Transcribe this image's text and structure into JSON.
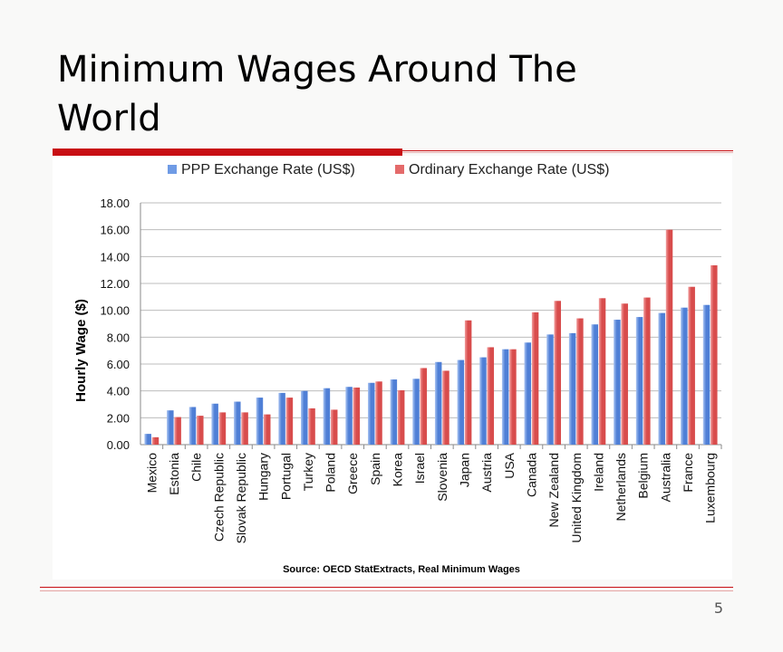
{
  "slide": {
    "title": "Minimum Wages Around The World",
    "page_number": "5"
  },
  "colors": {
    "ppp": "#6f9be5",
    "ordinary": "#e46a6a",
    "accent": "#c80f14"
  },
  "chart_data": {
    "type": "bar",
    "title": "",
    "xlabel": "",
    "ylabel": "Hourly Wage ($)",
    "ylim": [
      0,
      18
    ],
    "yticks": [
      "0.00",
      "2.00",
      "4.00",
      "6.00",
      "8.00",
      "10.00",
      "12.00",
      "14.00",
      "16.00",
      "18.00"
    ],
    "grid": true,
    "legend_position": "top",
    "source": "Source: OECD StatExtracts, Real Minimum Wages",
    "categories": [
      "Mexico",
      "Estonia",
      "Chile",
      "Czech Republic",
      "Slovak Republic",
      "Hungary",
      "Portugal",
      "Turkey",
      "Poland",
      "Greece",
      "Spain",
      "Korea",
      "Israel",
      "Slovenia",
      "Japan",
      "Austria",
      "USA",
      "Canada",
      "New Zealand",
      "United Kingdom",
      "Ireland",
      "Netherlands",
      "Belgium",
      "Australia",
      "France",
      "Luxembourg"
    ],
    "series": [
      {
        "name": "PPP Exchange Rate (US$)",
        "values": [
          0.8,
          2.55,
          2.8,
          3.05,
          3.2,
          3.5,
          3.85,
          4.0,
          4.2,
          4.3,
          4.6,
          4.85,
          4.9,
          6.15,
          6.3,
          6.5,
          7.1,
          7.6,
          8.2,
          8.3,
          8.95,
          9.3,
          9.5,
          9.8,
          10.2,
          10.4
        ]
      },
      {
        "name": "Ordinary Exchange Rate (US$)",
        "values": [
          0.55,
          2.05,
          2.15,
          2.4,
          2.4,
          2.25,
          3.5,
          2.7,
          2.6,
          4.25,
          4.7,
          4.05,
          5.7,
          5.5,
          9.25,
          7.25,
          7.1,
          9.85,
          10.7,
          9.4,
          10.9,
          10.5,
          10.95,
          16.0,
          11.75,
          13.35
        ]
      }
    ]
  }
}
